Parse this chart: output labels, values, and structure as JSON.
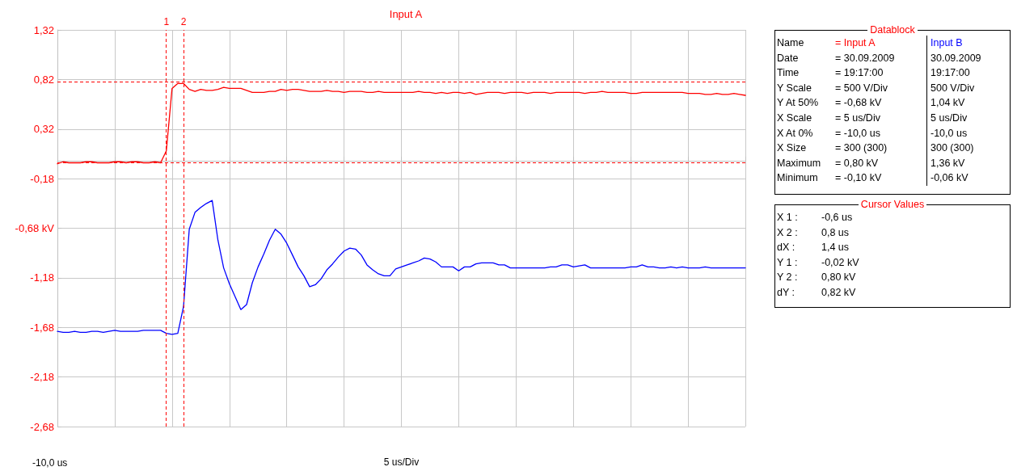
{
  "chart_data": {
    "type": "line",
    "title": "Input A",
    "xlabel": "5 us/Div",
    "categories": [
      null,
      null,
      null,
      null,
      null,
      null,
      null,
      null,
      null,
      null,
      null,
      null,
      null,
      null,
      null,
      null,
      null,
      null,
      null,
      null,
      null,
      null,
      null,
      null,
      null,
      null,
      null,
      null,
      null,
      null,
      null,
      null,
      null,
      null,
      null,
      null,
      null,
      null,
      null,
      null,
      null,
      null,
      null,
      null,
      null,
      null,
      null,
      null,
      null,
      null,
      null,
      null,
      null,
      null,
      null,
      null,
      null,
      null,
      null,
      null,
      null,
      null,
      null,
      null,
      null,
      null,
      null,
      null,
      null,
      null,
      null,
      null,
      null,
      null,
      null,
      null,
      null,
      null,
      null,
      null,
      null,
      null,
      null,
      null,
      null,
      null,
      null,
      null,
      null,
      null,
      null,
      null,
      null,
      null,
      null,
      null,
      null,
      null,
      null,
      null,
      null,
      null,
      null,
      null,
      null,
      null,
      null,
      null,
      null,
      null,
      null,
      null,
      null,
      null,
      null,
      null,
      null,
      null,
      null,
      null,
      null
    ],
    "ylim": [
      -2.68,
      1.32
    ],
    "yticks": [
      {
        "value": -2.68,
        "label": "-2,68"
      },
      {
        "value": -2.18,
        "label": "-2,18"
      },
      {
        "value": -1.68,
        "label": "-1,68"
      },
      {
        "value": -1.18,
        "label": "-1,18"
      },
      {
        "value": -0.68,
        "label": "-0,68 kV"
      },
      {
        "value": -0.18,
        "label": "-0,18"
      },
      {
        "value": 0.32,
        "label": "0,32"
      },
      {
        "value": 0.82,
        "label": "0,82"
      },
      {
        "value": 1.32,
        "label": "1,32"
      }
    ],
    "grid": true,
    "marker": "none",
    "line_style": "solid",
    "series": [
      {
        "color": "#ff0000",
        "values": [
          -0.03,
          -0.01,
          -0.02,
          -0.02,
          -0.02,
          -0.01,
          -0.01,
          -0.02,
          -0.02,
          -0.02,
          -0.01,
          -0.01,
          -0.02,
          -0.01,
          -0.01,
          -0.02,
          -0.02,
          -0.01,
          -0.02,
          0.1,
          0.73,
          0.78,
          0.78,
          0.72,
          0.7,
          0.72,
          0.71,
          0.71,
          0.72,
          0.74,
          0.73,
          0.73,
          0.73,
          0.71,
          0.69,
          0.69,
          0.69,
          0.7,
          0.7,
          0.72,
          0.71,
          0.72,
          0.72,
          0.71,
          0.7,
          0.7,
          0.7,
          0.71,
          0.7,
          0.7,
          0.69,
          0.7,
          0.7,
          0.7,
          0.69,
          0.69,
          0.7,
          0.69,
          0.69,
          0.69,
          0.69,
          0.69,
          0.69,
          0.7,
          0.69,
          0.69,
          0.68,
          0.69,
          0.68,
          0.69,
          0.69,
          0.68,
          0.69,
          0.67,
          0.68,
          0.69,
          0.69,
          0.69,
          0.68,
          0.69,
          0.69,
          0.69,
          0.68,
          0.69,
          0.69,
          0.69,
          0.68,
          0.69,
          0.69,
          0.69,
          0.69,
          0.69,
          0.68,
          0.69,
          0.69,
          0.7,
          0.69,
          0.69,
          0.69,
          0.69,
          0.68,
          0.68,
          0.69,
          0.69,
          0.69,
          0.69,
          0.69,
          0.69,
          0.69,
          0.69,
          0.68,
          0.68,
          0.68,
          0.67,
          0.67,
          0.68,
          0.67,
          0.67,
          0.68,
          0.67,
          0.66
        ]
      },
      {
        "color": "#0000ff",
        "values": [
          -1.72,
          -1.73,
          -1.73,
          -1.72,
          -1.73,
          -1.73,
          -1.72,
          -1.72,
          -1.73,
          -1.72,
          -1.71,
          -1.72,
          -1.72,
          -1.72,
          -1.72,
          -1.71,
          -1.71,
          -1.71,
          -1.71,
          -1.74,
          -1.75,
          -1.74,
          -1.47,
          -0.69,
          -0.52,
          -0.47,
          -0.43,
          -0.4,
          -0.8,
          -1.08,
          -1.24,
          -1.37,
          -1.5,
          -1.45,
          -1.23,
          -1.07,
          -0.94,
          -0.8,
          -0.69,
          -0.74,
          -0.83,
          -0.95,
          -1.07,
          -1.16,
          -1.27,
          -1.25,
          -1.19,
          -1.1,
          -1.04,
          -0.97,
          -0.91,
          -0.88,
          -0.89,
          -0.95,
          -1.05,
          -1.1,
          -1.14,
          -1.16,
          -1.16,
          -1.09,
          -1.07,
          -1.05,
          -1.03,
          -1.01,
          -0.98,
          -0.99,
          -1.02,
          -1.07,
          -1.07,
          -1.07,
          -1.11,
          -1.07,
          -1.07,
          -1.04,
          -1.03,
          -1.03,
          -1.03,
          -1.05,
          -1.05,
          -1.08,
          -1.08,
          -1.08,
          -1.08,
          -1.08,
          -1.08,
          -1.08,
          -1.07,
          -1.07,
          -1.05,
          -1.05,
          -1.07,
          -1.06,
          -1.05,
          -1.08,
          -1.08,
          -1.08,
          -1.08,
          -1.08,
          -1.08,
          -1.08,
          -1.07,
          -1.07,
          -1.05,
          -1.07,
          -1.07,
          -1.08,
          -1.08,
          -1.07,
          -1.08,
          -1.07,
          -1.08,
          -1.08,
          -1.08,
          -1.07,
          -1.08,
          -1.08,
          -1.08,
          -1.08,
          -1.08,
          -1.08,
          -1.08
        ]
      }
    ],
    "ref_lines": [
      {
        "axis": "y",
        "value": -0.02,
        "label": null,
        "color": "#ff0000",
        "line_style": "dashed"
      },
      {
        "axis": "y",
        "value": 0.8,
        "label": null,
        "color": "#ff0000",
        "line_style": "dashed"
      }
    ],
    "annotations": [
      "Datablock",
      "Name",
      "= Input A",
      "Input B",
      "Date",
      "= 30.09.2009",
      "30.09.2009",
      "Time",
      "= 19:17:00",
      "19:17:00",
      "Y Scale",
      "= 500 V/Div",
      "500 V/Div",
      "Y At 50%",
      "= -0,68 kV",
      "1,04 kV",
      "X Scale",
      "= 5 us/Div",
      "5 us/Div",
      "X At 0%",
      "= -10,0 us",
      "-10,0 us",
      "X Size",
      "= 300 (300)",
      "300 (300)",
      "Maximum",
      "= 0,80 kV",
      "1,36 kV",
      "Minimum",
      "= -0,10 kV",
      "-0,06 kV",
      "Cursor Values",
      "X 1 :",
      "-0,6 us",
      "X 2 :",
      "0,8 us",
      "dX :",
      "1,4 us",
      "Y 1 :",
      "-0,02 kV",
      "Y 2 :",
      "0,80 kV",
      "dY :",
      "0,82 kV",
      "-10,0 us",
      "1",
      "2"
    ]
  }
}
